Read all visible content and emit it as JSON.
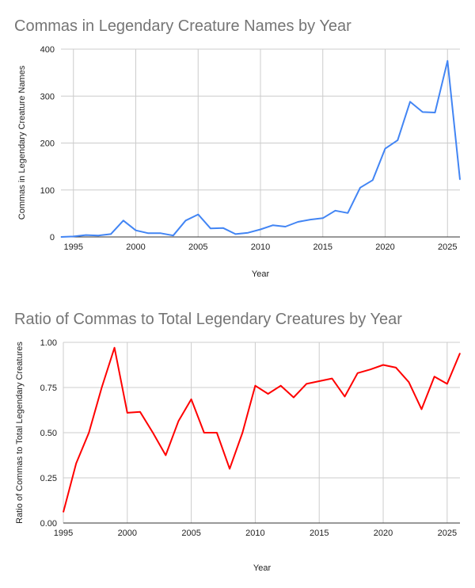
{
  "chart_data": [
    {
      "type": "line",
      "title": "Commas in Legendary Creature Names by Year",
      "xlabel": "Year",
      "ylabel": "Commas in Legendary Creature Names",
      "xlim": [
        1994,
        2026
      ],
      "ylim": [
        0,
        400
      ],
      "xticks": [
        "1995",
        "2000",
        "2005",
        "2010",
        "2015",
        "2020",
        "2025"
      ],
      "yticks": [
        "0",
        "100",
        "200",
        "300",
        "400"
      ],
      "grid": true,
      "color": "#4285f4",
      "x": [
        1994,
        1995,
        1996,
        1997,
        1998,
        1999,
        2000,
        2001,
        2002,
        2003,
        2004,
        2005,
        2006,
        2007,
        2008,
        2009,
        2010,
        2011,
        2012,
        2013,
        2014,
        2015,
        2016,
        2017,
        2018,
        2019,
        2020,
        2021,
        2022,
        2023,
        2024,
        2025,
        2026
      ],
      "values": [
        0,
        1,
        4,
        3,
        6,
        35,
        14,
        8,
        8,
        3,
        35,
        48,
        18,
        19,
        6,
        9,
        16,
        25,
        22,
        32,
        37,
        40,
        56,
        51,
        105,
        121,
        188,
        206,
        288,
        266,
        265,
        375,
        122
      ]
    },
    {
      "type": "line",
      "title": "Ratio of Commas to Total Legendary Creatures by Year",
      "xlabel": "Year",
      "ylabel": "Ratio of Commas to Total Legendary Creatures",
      "xlim": [
        1995,
        2026
      ],
      "ylim": [
        0,
        1
      ],
      "xticks": [
        "1995",
        "2000",
        "2005",
        "2010",
        "2015",
        "2020",
        "2025"
      ],
      "yticks": [
        "0.00",
        "0.25",
        "0.50",
        "0.75",
        "1.00"
      ],
      "grid": true,
      "color": "#ff0000",
      "x": [
        1995,
        1996,
        1997,
        1998,
        1999,
        2000,
        2001,
        2002,
        2003,
        2004,
        2005,
        2006,
        2007,
        2008,
        2009,
        2010,
        2011,
        2012,
        2013,
        2014,
        2015,
        2016,
        2017,
        2018,
        2019,
        2020,
        2021,
        2022,
        2023,
        2024,
        2025,
        2026
      ],
      "values": [
        0.06,
        0.33,
        0.5,
        0.75,
        0.97,
        0.61,
        0.615,
        0.5,
        0.375,
        0.565,
        0.685,
        0.5,
        0.5,
        0.3,
        0.5,
        0.76,
        0.715,
        0.76,
        0.695,
        0.77,
        0.785,
        0.8,
        0.7,
        0.83,
        0.85,
        0.875,
        0.86,
        0.78,
        0.63,
        0.81,
        0.77,
        0.94
      ]
    }
  ]
}
